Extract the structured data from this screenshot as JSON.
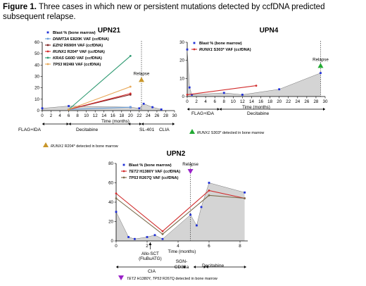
{
  "caption": {
    "label": "Figure 1.",
    "text": "Three cases in which new or persistent mutations detected by ccfDNA predicted subsequent relapse."
  },
  "chart_data": [
    {
      "type": "line",
      "title": "UPN21",
      "xlabel": "Time (months)",
      "xlim": [
        0,
        30
      ],
      "ylim": [
        0,
        60
      ],
      "x_ticks": [
        "0",
        "2",
        "4",
        "6",
        "8",
        "10",
        "12",
        "14",
        "16",
        "18",
        "20",
        "22",
        "24",
        "26",
        "28",
        "30"
      ],
      "y_ticks": [
        "0",
        "10",
        "20",
        "30",
        "40",
        "50",
        "60"
      ],
      "series": [
        {
          "name": "Blast % (bone marrow)",
          "color": "#1f2fd6",
          "x": [
            0,
            6,
            20,
            22,
            23,
            25,
            27
          ],
          "y": [
            2,
            4,
            3,
            2,
            6,
            3,
            1
          ]
        },
        {
          "name": "DNMT3A E820K VAF (ccfDNA)",
          "color": "#6a9fd8",
          "x": [
            6,
            20
          ],
          "y": [
            1,
            3
          ]
        },
        {
          "name": "EZH2 R690H VAF (ccfDNA)",
          "color": "#7d1f1f",
          "x": [
            6,
            20
          ],
          "y": [
            1,
            14
          ]
        },
        {
          "name": "RUNX1 R204* VAF (ccfDNA)",
          "color": "#d12a2a",
          "x": [
            6,
            20
          ],
          "y": [
            1,
            15
          ]
        },
        {
          "name": "KRAS G60D VAF (ccfDNA)",
          "color": "#2f9a72",
          "x": [
            6,
            20
          ],
          "y": [
            1,
            48
          ]
        },
        {
          "name": "TP53 M246I VAF (ccfDNA)",
          "color": "#e8a858",
          "x": [
            6,
            20
          ],
          "y": [
            1,
            21
          ]
        }
      ],
      "annotations": [
        "Relapse"
      ],
      "treatments": [
        "FLAG+IDA",
        "Decitabine",
        "SL-401",
        "CLIA"
      ],
      "footnote": "RUNX1 R204* detected in bone marrow"
    },
    {
      "type": "line",
      "title": "UPN4",
      "xlabel": "Time (months)",
      "xlim": [
        0,
        30
      ],
      "ylim": [
        0,
        30
      ],
      "x_ticks": [
        "0",
        "2",
        "4",
        "6",
        "8",
        "10",
        "12",
        "14",
        "16",
        "18",
        "20",
        "22",
        "24",
        "26",
        "28",
        "30"
      ],
      "y_ticks": [
        "0",
        "10",
        "20",
        "30"
      ],
      "series": [
        {
          "name": "Blast % (bone marrow)",
          "color": "#1f2fd6",
          "x": [
            0,
            0.5,
            1,
            8,
            12,
            20,
            29
          ],
          "y": [
            26,
            5,
            1,
            2,
            1,
            4,
            13
          ]
        },
        {
          "name": "RUNX1 S303* VAF (ccfDNA)",
          "color": "#d12a2a",
          "x": [
            0,
            15
          ],
          "y": [
            1,
            6
          ]
        }
      ],
      "annotations": [
        "Relapse"
      ],
      "treatments": [
        "FLAG+IDA",
        "Decitabine"
      ],
      "footnote": "RUNX1 S303* detected in bone marrow"
    },
    {
      "type": "line",
      "title": "UPN2",
      "xlabel": "Time (months)",
      "xlim": [
        0,
        8.5
      ],
      "ylim": [
        0,
        80
      ],
      "x_ticks": [
        "0",
        "2",
        "4",
        "6",
        "8"
      ],
      "y_ticks": [
        "0",
        "20",
        "40",
        "60",
        "80"
      ],
      "series": [
        {
          "name": "Blast % (bone marrow)",
          "color": "#1f2fd6",
          "x": [
            0,
            0.8,
            1.2,
            2.0,
            2.5,
            3.0,
            4.8,
            5.2,
            5.5,
            6.0,
            8.3
          ],
          "y": [
            30,
            4,
            2,
            4,
            6,
            2,
            27,
            16,
            35,
            60,
            50
          ]
        },
        {
          "name": "TET2 H1380Y VAF (ccfDNA)",
          "color": "#d12a2a",
          "x": [
            0,
            3.0,
            6.0,
            8.3
          ],
          "y": [
            49,
            10,
            52,
            44
          ]
        },
        {
          "name": "TP53 R267Q VAF (ccfDNA)",
          "color": "#7a6a4a",
          "x": [
            0,
            3.0,
            6.0,
            8.3
          ],
          "y": [
            44,
            7,
            47,
            44
          ]
        }
      ],
      "annotations": [
        "Relapse",
        "Allo-SCT (FluBuATG)"
      ],
      "treatments": [
        "CIA",
        "SGN-CD33a",
        "Decitabine"
      ],
      "footnote": "TET2 H1380Y, TP53 R267Q detected in bone marrow"
    }
  ]
}
